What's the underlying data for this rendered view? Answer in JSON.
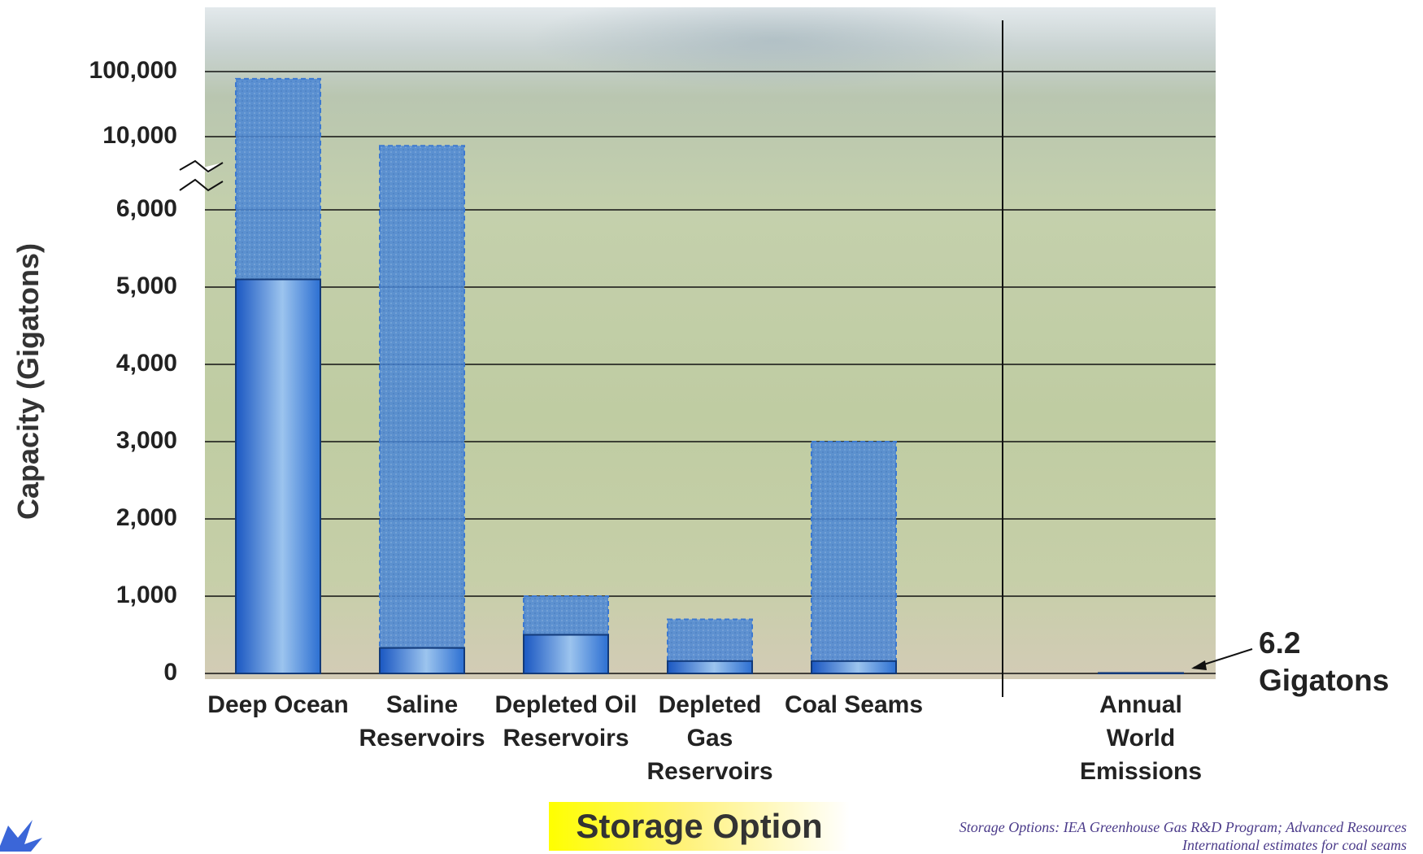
{
  "chart_data": {
    "type": "bar",
    "y_label": "Capacity (Gigatons)",
    "x_label": "Storage Option",
    "source": "Storage Options:  IEA Greenhouse Gas R&D Program; Advanced Resources International estimates for coal seams",
    "categories": [
      "Deep Ocean",
      "Saline Reservoirs",
      "Depleted Oil Reservoirs",
      "Depleted Gas Reservoirs",
      "Coal Seams",
      "Annual World Emissions"
    ],
    "series": [
      {
        "color": "#2f6fd0",
        "style": "solid",
        "values": [
          5100,
          330,
          500,
          160,
          160,
          6.2
        ],
        "value_labels": [
          null,
          null,
          null,
          null,
          null,
          "6.2 Gigatons"
        ]
      },
      {
        "color": "#3b78d0",
        "style": "dashed",
        "values": [
          90000,
          9500,
          1000,
          700,
          3000,
          null
        ]
      }
    ],
    "ylim": [
      0,
      100000
    ],
    "yticks": [
      0,
      {
        "value": 1000,
        "label": "1,000"
      },
      {
        "value": 2000,
        "label": "2,000"
      },
      {
        "value": 3000,
        "label": "3,000"
      },
      {
        "value": 4000,
        "label": "4,000"
      },
      {
        "value": 5000,
        "label": "5,000"
      },
      {
        "value": 6000,
        "label": "6,000"
      },
      {
        "value": 10000,
        "label": "10,000"
      },
      {
        "value": 100000,
        "label": "100,000"
      }
    ],
    "axis_break": [
      6000,
      10000
    ],
    "grid": true
  }
}
